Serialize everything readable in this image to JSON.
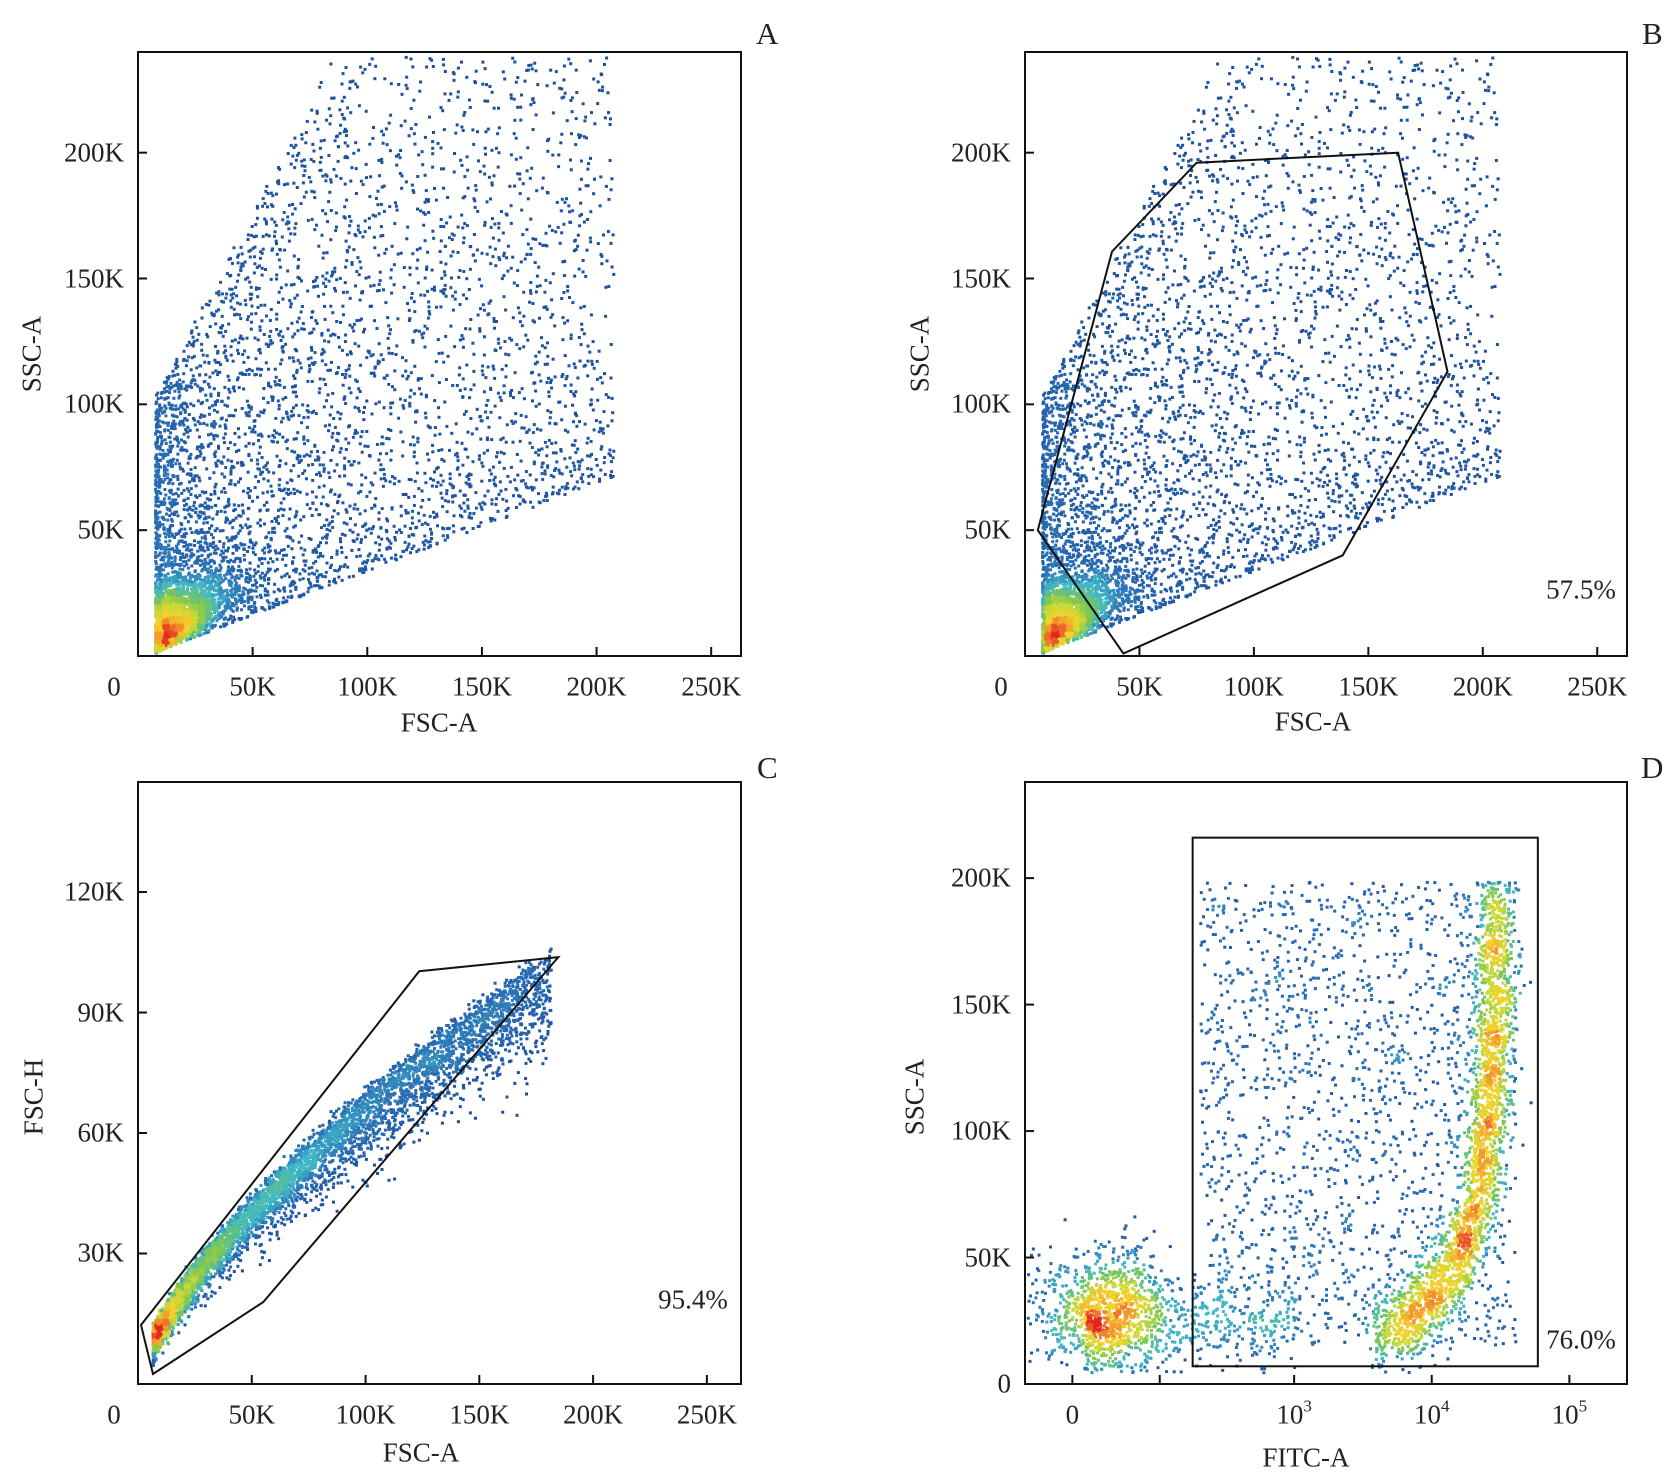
{
  "chart_data": [
    {
      "panel": "A",
      "type": "scatter",
      "color_mode": "density",
      "xlabel": "FSC-A",
      "ylabel": "SSC-A",
      "x_scale": "linear",
      "y_scale": "linear",
      "xlim": [
        0,
        263000
      ],
      "ylim": [
        0,
        240000
      ],
      "xticks": [
        {
          "value": 0,
          "label": "0"
        },
        {
          "value": 50000,
          "label": "50K"
        },
        {
          "value": 100000,
          "label": "100K"
        },
        {
          "value": 150000,
          "label": "150K"
        },
        {
          "value": 200000,
          "label": "200K"
        },
        {
          "value": 250000,
          "label": "250K"
        }
      ],
      "yticks": [
        {
          "value": 50000,
          "label": "50K"
        },
        {
          "value": 100000,
          "label": "100K"
        },
        {
          "value": 150000,
          "label": "150K"
        },
        {
          "value": 200000,
          "label": "200K"
        }
      ],
      "gate": null,
      "gate_percent": ""
    },
    {
      "panel": "B",
      "type": "scatter",
      "color_mode": "density",
      "xlabel": "FSC-A",
      "ylabel": "SSC-A",
      "x_scale": "linear",
      "y_scale": "linear",
      "xlim": [
        0,
        263000
      ],
      "ylim": [
        0,
        240000
      ],
      "xticks": [
        {
          "value": 0,
          "label": "0"
        },
        {
          "value": 50000,
          "label": "50K"
        },
        {
          "value": 100000,
          "label": "100K"
        },
        {
          "value": 150000,
          "label": "150K"
        },
        {
          "value": 200000,
          "label": "200K"
        },
        {
          "value": 250000,
          "label": "250K"
        }
      ],
      "yticks": [
        {
          "value": 50000,
          "label": "50K"
        },
        {
          "value": 100000,
          "label": "100K"
        },
        {
          "value": 150000,
          "label": "150K"
        },
        {
          "value": 200000,
          "label": "200K"
        }
      ],
      "gate": {
        "type": "polygon",
        "points": [
          [
            5600,
            50000
          ],
          [
            38000,
            160700
          ],
          [
            75000,
            196000
          ],
          [
            163000,
            200000
          ],
          [
            184600,
            113000
          ],
          [
            138800,
            40000
          ],
          [
            43000,
            1000
          ]
        ]
      },
      "gate_percent": "57.5%"
    },
    {
      "panel": "C",
      "type": "scatter",
      "color_mode": "density",
      "xlabel": "FSC-A",
      "ylabel": "FSC-H",
      "x_scale": "linear",
      "y_scale": "linear",
      "xlim": [
        0,
        265000
      ],
      "ylim": [
        -2500,
        147400
      ],
      "xticks": [
        {
          "value": 0,
          "label": "0"
        },
        {
          "value": 50000,
          "label": "50K"
        },
        {
          "value": 100000,
          "label": "100K"
        },
        {
          "value": 150000,
          "label": "150K"
        },
        {
          "value": 200000,
          "label": "200K"
        },
        {
          "value": 250000,
          "label": "250K"
        }
      ],
      "yticks": [
        {
          "value": 30000,
          "label": "30K"
        },
        {
          "value": 60000,
          "label": "60K"
        },
        {
          "value": 90000,
          "label": "90K"
        },
        {
          "value": 120000,
          "label": "120K"
        }
      ],
      "gate": {
        "type": "polygon",
        "points": [
          [
            1300,
            12200
          ],
          [
            123600,
            100300
          ],
          [
            184700,
            103800
          ],
          [
            55000,
            17900
          ],
          [
            6600,
            0
          ]
        ]
      },
      "gate_percent": "95.4%"
    },
    {
      "panel": "D",
      "type": "scatter",
      "color_mode": "density",
      "xlabel": "FITC-A",
      "ylabel": "SSC-A",
      "x_scale": "biexponential",
      "y_scale": "linear",
      "xlim": [
        -43,
        262144
      ],
      "ylim": [
        0,
        238000
      ],
      "xticks": [
        {
          "value": 0,
          "label": "0"
        },
        {
          "value": 100,
          "label": ""
        },
        {
          "value": 1000,
          "base": "10",
          "exp": "3"
        },
        {
          "value": 10000,
          "base": "10",
          "exp": "4"
        },
        {
          "value": 100000,
          "base": "10",
          "exp": "5"
        }
      ],
      "yticks": [
        {
          "value": 0,
          "label": "0"
        },
        {
          "value": 50000,
          "label": "50K"
        },
        {
          "value": 100000,
          "label": "100K"
        },
        {
          "value": 150000,
          "label": "150K"
        },
        {
          "value": 200000,
          "label": "200K"
        }
      ],
      "gate": {
        "type": "rectangle",
        "x": [
          180,
          59000
        ],
        "y": [
          7000,
          216000
        ]
      },
      "gate_percent": "76.0%"
    }
  ],
  "colors": {
    "density_scale": [
      "#1c4f9c",
      "#2a6fb5",
      "#3fb8c8",
      "#7cc653",
      "#c8d839",
      "#f4d22a",
      "#f0762a",
      "#e2261f"
    ],
    "gate_line": "#111111",
    "frame": "#111111"
  }
}
